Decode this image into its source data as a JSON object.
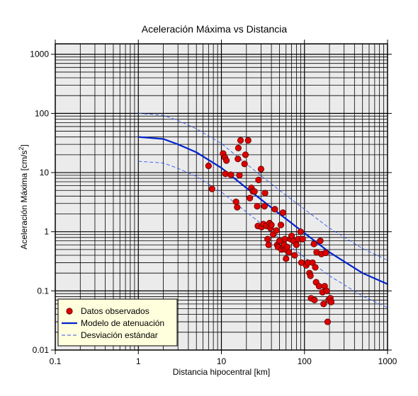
{
  "chart_data": {
    "type": "scatter",
    "title": "Aceleración Máxima vs Distancia",
    "xlabel": "Distancia hipocentral [km]",
    "ylabel_main": "Aceleración Máxima [cm/s",
    "ylabel_sup": "2",
    "ylabel_end": "]",
    "xscale": "log",
    "yscale": "log",
    "xlim": [
      0.1,
      1000
    ],
    "ylim": [
      0.01,
      1500
    ],
    "grid": true,
    "legend_position": "bottom-left",
    "x_ticks": [
      {
        "value": 0.1,
        "label": "0.1"
      },
      {
        "value": 1,
        "label": "1"
      },
      {
        "value": 10,
        "label": "10"
      },
      {
        "value": 100,
        "label": "100"
      },
      {
        "value": 1000,
        "label": "1000"
      }
    ],
    "y_ticks": [
      {
        "value": 0.01,
        "label": "0.01"
      },
      {
        "value": 0.1,
        "label": "0.1"
      },
      {
        "value": 1,
        "label": "1"
      },
      {
        "value": 10,
        "label": "10"
      },
      {
        "value": 100,
        "label": "100"
      },
      {
        "value": 1000,
        "label": "1000"
      }
    ],
    "colors": {
      "plot_background": "#ebebeb",
      "points": "#dd0000",
      "points_edge": "#5a0000",
      "model": "#0022cc",
      "std": "#3355ee",
      "legend_background": "#ffffdd"
    },
    "series": [
      {
        "name": "Datos observados",
        "kind": "scatter",
        "points": [
          [
            7,
            13
          ],
          [
            7.7,
            5.3
          ],
          [
            10.5,
            21
          ],
          [
            11,
            18
          ],
          [
            11.2,
            9.5
          ],
          [
            11.5,
            16
          ],
          [
            13,
            9.2
          ],
          [
            15,
            3.2
          ],
          [
            15.5,
            2.6
          ],
          [
            15.8,
            17
          ],
          [
            16,
            26
          ],
          [
            16.5,
            9
          ],
          [
            17,
            35
          ],
          [
            19,
            14
          ],
          [
            19.5,
            20
          ],
          [
            21,
            35
          ],
          [
            22,
            3.7
          ],
          [
            23,
            5.5
          ],
          [
            24,
            4.8
          ],
          [
            25,
            4.8
          ],
          [
            27,
            2.7
          ],
          [
            27.5,
            1.25
          ],
          [
            28,
            7.5
          ],
          [
            30,
            11.5
          ],
          [
            30.5,
            1.2
          ],
          [
            32,
            1.35
          ],
          [
            33,
            2.7
          ],
          [
            33.5,
            4.5
          ],
          [
            35,
            1.25
          ],
          [
            36,
            0.75
          ],
          [
            37,
            0.6
          ],
          [
            38,
            1.4
          ],
          [
            39,
            1.15
          ],
          [
            40,
            1.3
          ],
          [
            42,
            0.9
          ],
          [
            44,
            2.4
          ],
          [
            46,
            1.05
          ],
          [
            47,
            0.6
          ],
          [
            48,
            0.55
          ],
          [
            50,
            0.7
          ],
          [
            52,
            1.3
          ],
          [
            53,
            0.5
          ],
          [
            55,
            2.1
          ],
          [
            56,
            0.55
          ],
          [
            57,
            0.6
          ],
          [
            58,
            0.75
          ],
          [
            59,
            0.5
          ],
          [
            60,
            0.35
          ],
          [
            62,
            0.55
          ],
          [
            65,
            0.45
          ],
          [
            68,
            0.75
          ],
          [
            70,
            0.85
          ],
          [
            74,
            0.7
          ],
          [
            76,
            0.4
          ],
          [
            80,
            0.6
          ],
          [
            85,
            0.75
          ],
          [
            90,
            1.0
          ],
          [
            92,
            0.3
          ],
          [
            95,
            0.75
          ],
          [
            105,
            0.27
          ],
          [
            110,
            0.3
          ],
          [
            115,
            0.2
          ],
          [
            118,
            0.18
          ],
          [
            120,
            0.075
          ],
          [
            125,
            0.3
          ],
          [
            130,
            0.62
          ],
          [
            132,
            0.07
          ],
          [
            135,
            0.25
          ],
          [
            138,
            0.14
          ],
          [
            140,
            0.45
          ],
          [
            150,
            0.12
          ],
          [
            155,
            0.7
          ],
          [
            160,
            0.42
          ],
          [
            165,
            0.095
          ],
          [
            170,
            0.06
          ],
          [
            175,
            0.12
          ],
          [
            180,
            0.44
          ],
          [
            185,
            0.1
          ],
          [
            190,
            0.03
          ],
          [
            195,
            0.07
          ],
          [
            205,
            0.075
          ],
          [
            210,
            0.065
          ]
        ]
      },
      {
        "name": "Modelo de atenuación",
        "kind": "line",
        "points": [
          [
            1,
            40
          ],
          [
            2,
            37
          ],
          [
            3,
            30
          ],
          [
            5,
            22
          ],
          [
            10,
            12
          ],
          [
            20,
            5.5
          ],
          [
            50,
            2
          ],
          [
            100,
            0.95
          ],
          [
            200,
            0.45
          ],
          [
            500,
            0.2
          ],
          [
            1000,
            0.13
          ]
        ]
      },
      {
        "name": "Desviación estándar",
        "kind": "dashed",
        "points_upper": [
          [
            1,
            100
          ],
          [
            2,
            93
          ],
          [
            3,
            76
          ],
          [
            5,
            55
          ],
          [
            10,
            31
          ],
          [
            20,
            14
          ],
          [
            50,
            5
          ],
          [
            100,
            2.4
          ],
          [
            200,
            1.15
          ],
          [
            500,
            0.52
          ],
          [
            1000,
            0.33
          ]
        ],
        "points_lower": [
          [
            1,
            15.5
          ],
          [
            2,
            14.5
          ],
          [
            3,
            11.8
          ],
          [
            5,
            8.6
          ],
          [
            10,
            4.7
          ],
          [
            20,
            2.15
          ],
          [
            50,
            0.78
          ],
          [
            100,
            0.37
          ],
          [
            200,
            0.18
          ],
          [
            500,
            0.082
          ],
          [
            1000,
            0.052
          ]
        ]
      }
    ]
  }
}
